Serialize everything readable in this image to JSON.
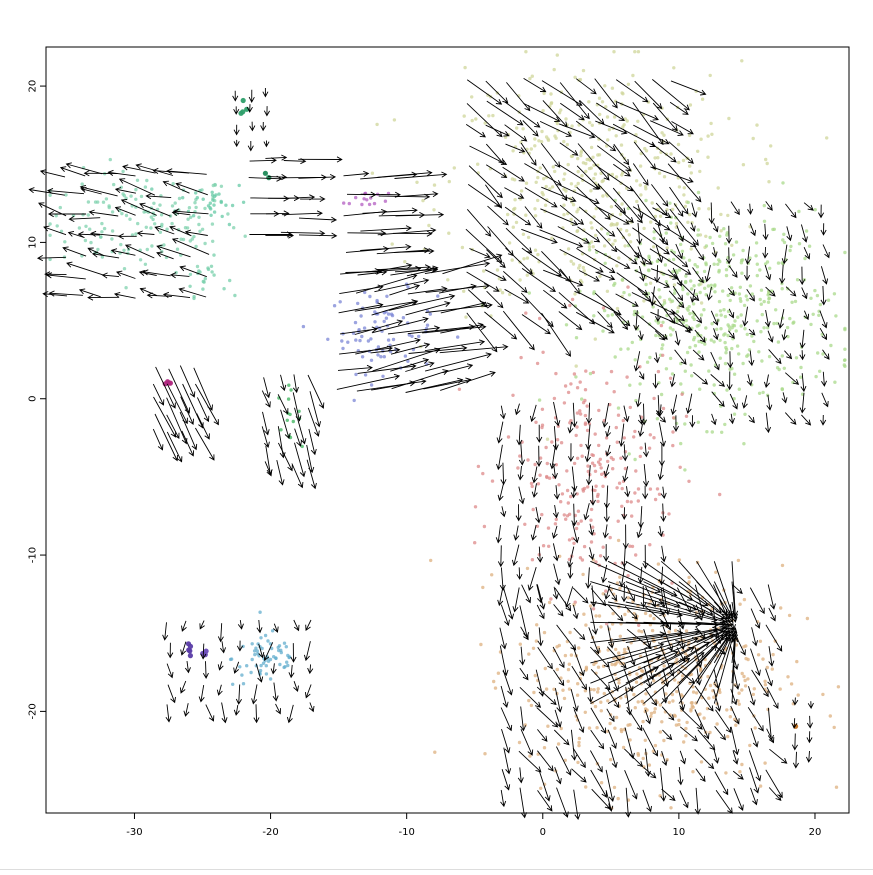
{
  "chart_data": {
    "type": "scatter",
    "title": "",
    "xlabel": "",
    "ylabel": "",
    "xlim": [
      -36.5,
      22.5
    ],
    "ylim": [
      -26.5,
      22.5
    ],
    "x_ticks": [
      -30,
      -20,
      -10,
      0,
      10,
      20
    ],
    "y_ticks": [
      20,
      10,
      0,
      -10,
      -20
    ],
    "grid": false,
    "legend": "none",
    "overlay": "velocity-arrows",
    "clusters": [
      {
        "cx": -29.5,
        "cy": 11.3,
        "sx": 3.6,
        "sy": 1.6,
        "n": 150,
        "color": "#7fd1ae"
      },
      {
        "cx": -24.2,
        "cy": 12.6,
        "sx": 1.3,
        "sy": 0.7,
        "n": 30,
        "color": "#66c9a5"
      },
      {
        "cx": -24.8,
        "cy": 7.8,
        "sx": 0.8,
        "sy": 0.6,
        "n": 20,
        "color": "#76cfaa"
      },
      {
        "cx": -22.0,
        "cy": 18.4,
        "sx": 0.2,
        "sy": 0.3,
        "n": 4,
        "color": "#2e9f6a"
      },
      {
        "cx": -20.2,
        "cy": 14.3,
        "sx": 0.1,
        "sy": 0.1,
        "n": 2,
        "color": "#1e8a57"
      },
      {
        "cx": -13.0,
        "cy": 12.8,
        "sx": 0.8,
        "sy": 0.4,
        "n": 14,
        "color": "#b35ec1"
      },
      {
        "cx": -11.8,
        "cy": 4.3,
        "sx": 2.0,
        "sy": 1.3,
        "n": 80,
        "color": "#7b86d6"
      },
      {
        "cx": -27.5,
        "cy": 1.0,
        "sx": 0.15,
        "sy": 0.15,
        "n": 4,
        "color": "#b0287f"
      },
      {
        "cx": -18.8,
        "cy": -1.0,
        "sx": 0.5,
        "sy": 0.8,
        "n": 14,
        "color": "#3ab25a"
      },
      {
        "cx": -20.2,
        "cy": -16.6,
        "sx": 1.3,
        "sy": 0.9,
        "n": 60,
        "color": "#63aecd"
      },
      {
        "cx": -26.0,
        "cy": -16.1,
        "sx": 0.12,
        "sy": 0.2,
        "n": 5,
        "color": "#5a3ca6"
      },
      {
        "cx": -24.9,
        "cy": -16.3,
        "sx": 0.1,
        "sy": 0.1,
        "n": 3,
        "color": "#6a4cb8"
      },
      {
        "cx": 3.5,
        "cy": 13.5,
        "sx": 5.5,
        "sy": 4.0,
        "n": 420,
        "color": "#cfd59a"
      },
      {
        "cx": 12.5,
        "cy": 5.5,
        "sx": 4.5,
        "sy": 3.2,
        "n": 430,
        "color": "#a9d98b"
      },
      {
        "cx": 3.5,
        "cy": -4.5,
        "sx": 3.2,
        "sy": 4.0,
        "n": 230,
        "color": "#dd8a8a"
      },
      {
        "cx": 8.0,
        "cy": -17.5,
        "sx": 4.8,
        "sy": 3.4,
        "n": 470,
        "color": "#ddb07f"
      },
      {
        "cx": 18.6,
        "cy": -21.0,
        "sx": 0.1,
        "sy": 0.1,
        "n": 1,
        "color": "#c2701e"
      }
    ],
    "arrow_fields": [
      {
        "x0": -35,
        "x1": -23.5,
        "y0": 6.5,
        "y1": 15.5,
        "step": 1.3,
        "ang": 170,
        "len": 2.2,
        "jit": 25
      },
      {
        "x0": -22.6,
        "x1": -20.4,
        "y0": 16.5,
        "y1": 20.0,
        "step": 1.1,
        "ang": 270,
        "len": 0.6,
        "jit": 5
      },
      {
        "x0": -21.5,
        "x1": -17.5,
        "y0": 10.5,
        "y1": 16.0,
        "step": 1.2,
        "ang": 0,
        "len": 2.4,
        "jit": 5
      },
      {
        "x0": -14.5,
        "x1": -10.0,
        "y0": 8.2,
        "y1": 15.0,
        "step": 1.2,
        "ang": 2,
        "len": 3.2,
        "jit": 6
      },
      {
        "x0": -15.0,
        "x1": -6.5,
        "y0": 0.5,
        "y1": 8.0,
        "step": 1.25,
        "ang": 10,
        "len": 3.8,
        "jit": 12
      },
      {
        "x0": -28.5,
        "x1": -25.5,
        "y0": -2.0,
        "y1": 2.5,
        "step": 1.0,
        "ang": 300,
        "len": 2.6,
        "jit": 8
      },
      {
        "x0": -20.5,
        "x1": -16.5,
        "y0": -4.0,
        "y1": 2.5,
        "step": 1.1,
        "ang": 290,
        "len": 1.8,
        "jit": 20
      },
      {
        "x0": -27.5,
        "x1": -16.5,
        "y0": -19.5,
        "y1": -14.0,
        "step": 1.3,
        "ang": 270,
        "len": 1.0,
        "jit": 60
      },
      {
        "x0": -5.5,
        "x1": 10.5,
        "y0": 5.5,
        "y1": 21.5,
        "step": 1.35,
        "ang": 325,
        "len": 2.6,
        "jit": 35
      },
      {
        "x0": 7.0,
        "x1": 21.5,
        "y0": -1.0,
        "y1": 12.5,
        "step": 1.35,
        "ang": 290,
        "len": 1.0,
        "jit": 70
      },
      {
        "x0": -3.0,
        "x1": 9.5,
        "y0": -12.0,
        "y1": 0.0,
        "step": 1.3,
        "ang": 270,
        "len": 1.2,
        "jit": 40
      },
      {
        "x0": -3.0,
        "x1": 17.5,
        "y0": -25.0,
        "y1": -12.0,
        "step": 1.3,
        "ang": 300,
        "len": 1.6,
        "jit": 50
      },
      {
        "x0": 18.5,
        "x1": 20.5,
        "y0": -22.5,
        "y1": -19.0,
        "step": 1.1,
        "ang": 270,
        "len": 0.8,
        "jit": 10
      }
    ],
    "convergence": {
      "x": 14.2,
      "y": -14.5,
      "x0": 3.5,
      "x1": 15.0,
      "y0": -19.5,
      "y1": -9.5,
      "step": 1.3
    }
  }
}
